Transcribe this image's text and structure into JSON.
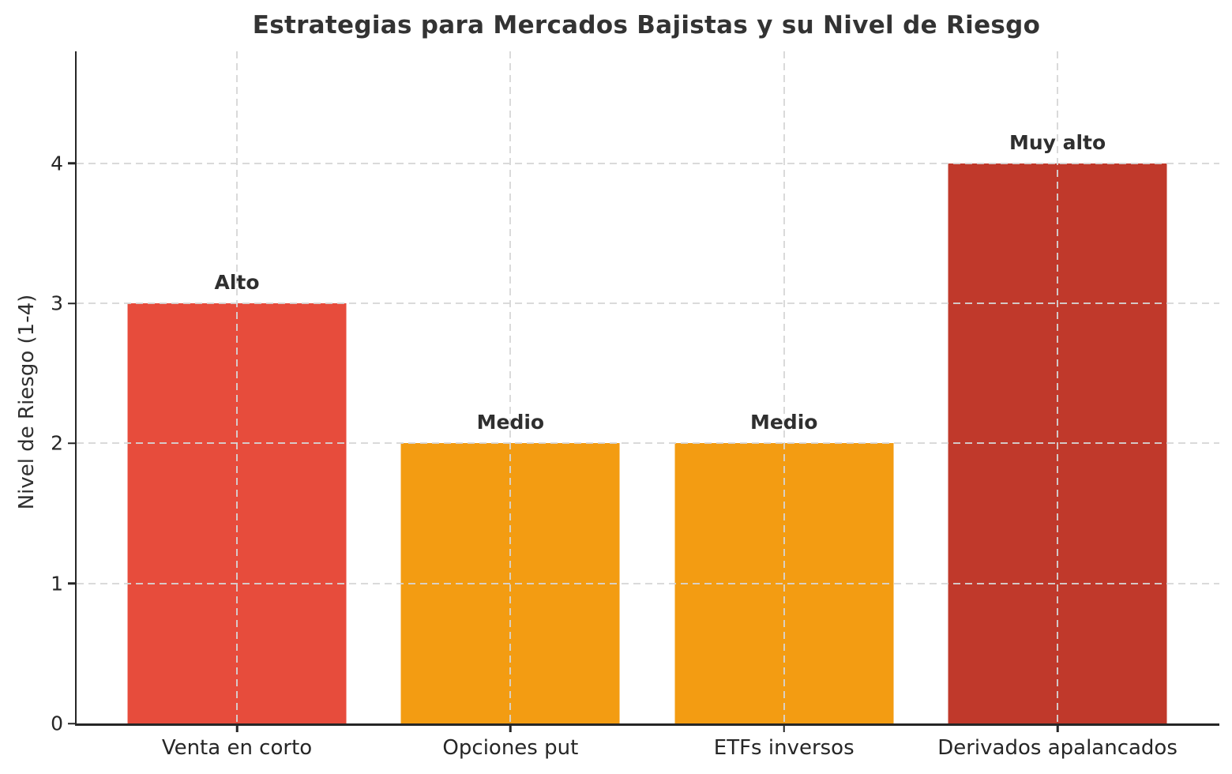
{
  "chart_data": {
    "type": "bar",
    "title": "Estrategias para Mercados Bajistas y su Nivel de Riesgo",
    "xlabel": "",
    "ylabel": "Nivel de Riesgo (1-4)",
    "categories": [
      "Venta en corto",
      "Opciones put",
      "ETFs inversos",
      "Derivados apalancados"
    ],
    "values": [
      3,
      2,
      2,
      4
    ],
    "bar_labels": [
      "Alto",
      "Medio",
      "Medio",
      "Muy alto"
    ],
    "bar_colors": [
      "#e74c3c",
      "#f39c12",
      "#f39c12",
      "#c0392b"
    ],
    "yticks": [
      0,
      1,
      2,
      3,
      4
    ],
    "ylim": [
      0,
      4.8
    ],
    "grid": "dashed, both axes, drawn over bars",
    "legend_position": "none",
    "colors": {
      "axis": "#262626",
      "grid": "#d6d6d6",
      "title_text": "#333333",
      "label_text": "#2f2f2f",
      "background": "#ffffff"
    }
  }
}
